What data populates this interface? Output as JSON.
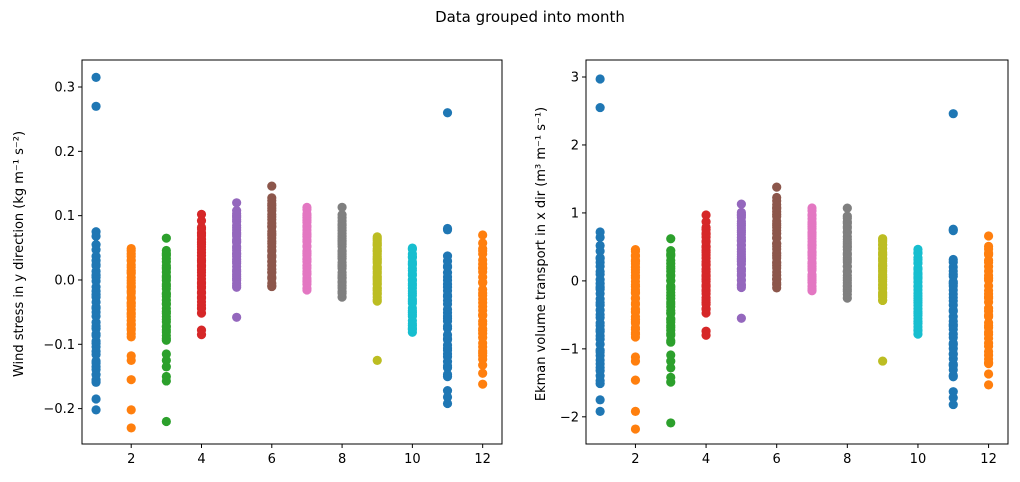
{
  "figure": {
    "suptitle": "Data grouped into month"
  },
  "chart_data": [
    {
      "type": "scatter",
      "xlabel": "",
      "ylabel": "Wind stress in y direction (kg m⁻¹ s⁻²)",
      "xlim": [
        0.6,
        12.55
      ],
      "ylim": [
        -0.255,
        0.342
      ],
      "xticks": [
        2,
        4,
        6,
        8,
        10,
        12
      ],
      "yticks": [
        -0.2,
        -0.1,
        0.0,
        0.1,
        0.2,
        0.3
      ],
      "ytick_labels": [
        "−0.2",
        "−0.1",
        "0.0",
        "0.1",
        "0.2",
        "0.3"
      ],
      "grid": false,
      "series": [
        {
          "month": 1,
          "color": "#1f77b4",
          "range": [
            -0.16,
            0.038
          ],
          "points": [
            0.315,
            0.27,
            0.075,
            0.068,
            0.055,
            0.047,
            -0.185,
            -0.202
          ]
        },
        {
          "month": 2,
          "color": "#ff7f0e",
          "range": [
            -0.088,
            0.05
          ],
          "points": [
            -0.118,
            -0.125,
            -0.155,
            -0.202,
            -0.23
          ]
        },
        {
          "month": 3,
          "color": "#2ca02c",
          "range": [
            -0.095,
            0.045
          ],
          "points": [
            0.065,
            -0.115,
            -0.125,
            -0.135,
            -0.15,
            -0.157,
            -0.22
          ]
        },
        {
          "month": 4,
          "color": "#d62728",
          "range": [
            -0.05,
            0.083
          ],
          "points": [
            0.102,
            0.092,
            -0.078,
            -0.085
          ]
        },
        {
          "month": 5,
          "color": "#9467bd",
          "range": [
            -0.012,
            0.108
          ],
          "points": [
            0.12,
            -0.058
          ]
        },
        {
          "month": 6,
          "color": "#8c564b",
          "range": [
            -0.012,
            0.128
          ],
          "points": [
            0.146
          ]
        },
        {
          "month": 7,
          "color": "#e377c2",
          "range": [
            -0.016,
            0.112
          ],
          "points": []
        },
        {
          "month": 8,
          "color": "#7f7f7f",
          "range": [
            -0.025,
            0.1
          ],
          "points": [
            0.113
          ]
        },
        {
          "month": 9,
          "color": "#bcbd22",
          "range": [
            -0.032,
            0.067
          ],
          "points": [
            -0.125
          ]
        },
        {
          "month": 10,
          "color": "#17becf",
          "range": [
            -0.082,
            0.05
          ],
          "points": []
        },
        {
          "month": 11,
          "color": "#1f77b4",
          "range": [
            -0.15,
            0.035
          ],
          "points": [
            0.26,
            0.08,
            0.078,
            -0.172,
            -0.182,
            -0.192
          ]
        },
        {
          "month": 12,
          "color": "#ff7f0e",
          "range": [
            -0.13,
            0.055
          ],
          "points": [
            0.07,
            -0.145,
            -0.162
          ]
        }
      ]
    },
    {
      "type": "scatter",
      "xlabel": "",
      "ylabel": "Ekman volume transport in x dir (m³ m⁻¹ s⁻¹)",
      "xlim": [
        0.6,
        12.55
      ],
      "ylim": [
        -2.4,
        3.25
      ],
      "xticks": [
        2,
        4,
        6,
        8,
        10,
        12
      ],
      "yticks": [
        -2,
        -1,
        0,
        1,
        2,
        3
      ],
      "ytick_labels": [
        "−2",
        "−1",
        "0",
        "1",
        "2",
        "3"
      ],
      "grid": false,
      "series": [
        {
          "month": 1,
          "color": "#1f77b4",
          "range": [
            -1.5,
            0.36
          ],
          "points": [
            2.97,
            2.55,
            0.72,
            0.64,
            0.52,
            0.44,
            -1.75,
            -1.92
          ]
        },
        {
          "month": 2,
          "color": "#ff7f0e",
          "range": [
            -0.83,
            0.47
          ],
          "points": [
            -1.12,
            -1.18,
            -1.46,
            -1.92,
            -2.18
          ]
        },
        {
          "month": 3,
          "color": "#2ca02c",
          "range": [
            -0.9,
            0.43
          ],
          "points": [
            0.62,
            -1.09,
            -1.18,
            -1.28,
            -1.42,
            -1.49,
            -2.09
          ]
        },
        {
          "month": 4,
          "color": "#d62728",
          "range": [
            -0.47,
            0.79
          ],
          "points": [
            0.97,
            0.87,
            -0.74,
            -0.8
          ]
        },
        {
          "month": 5,
          "color": "#9467bd",
          "range": [
            -0.11,
            1.02
          ],
          "points": [
            1.13,
            -0.55
          ]
        },
        {
          "month": 6,
          "color": "#8c564b",
          "range": [
            -0.11,
            1.21
          ],
          "points": [
            1.38
          ]
        },
        {
          "month": 7,
          "color": "#e377c2",
          "range": [
            -0.15,
            1.06
          ],
          "points": []
        },
        {
          "month": 8,
          "color": "#7f7f7f",
          "range": [
            -0.24,
            0.95
          ],
          "points": [
            1.07
          ]
        },
        {
          "month": 9,
          "color": "#bcbd22",
          "range": [
            -0.3,
            0.63
          ],
          "points": [
            -1.18
          ]
        },
        {
          "month": 10,
          "color": "#17becf",
          "range": [
            -0.78,
            0.47
          ],
          "points": []
        },
        {
          "month": 11,
          "color": "#1f77b4",
          "range": [
            -1.42,
            0.33
          ],
          "points": [
            2.46,
            0.76,
            0.74,
            -1.63,
            -1.72,
            -1.82
          ]
        },
        {
          "month": 12,
          "color": "#ff7f0e",
          "range": [
            -1.23,
            0.52
          ],
          "points": [
            0.66,
            -1.37,
            -1.53
          ]
        }
      ]
    }
  ]
}
